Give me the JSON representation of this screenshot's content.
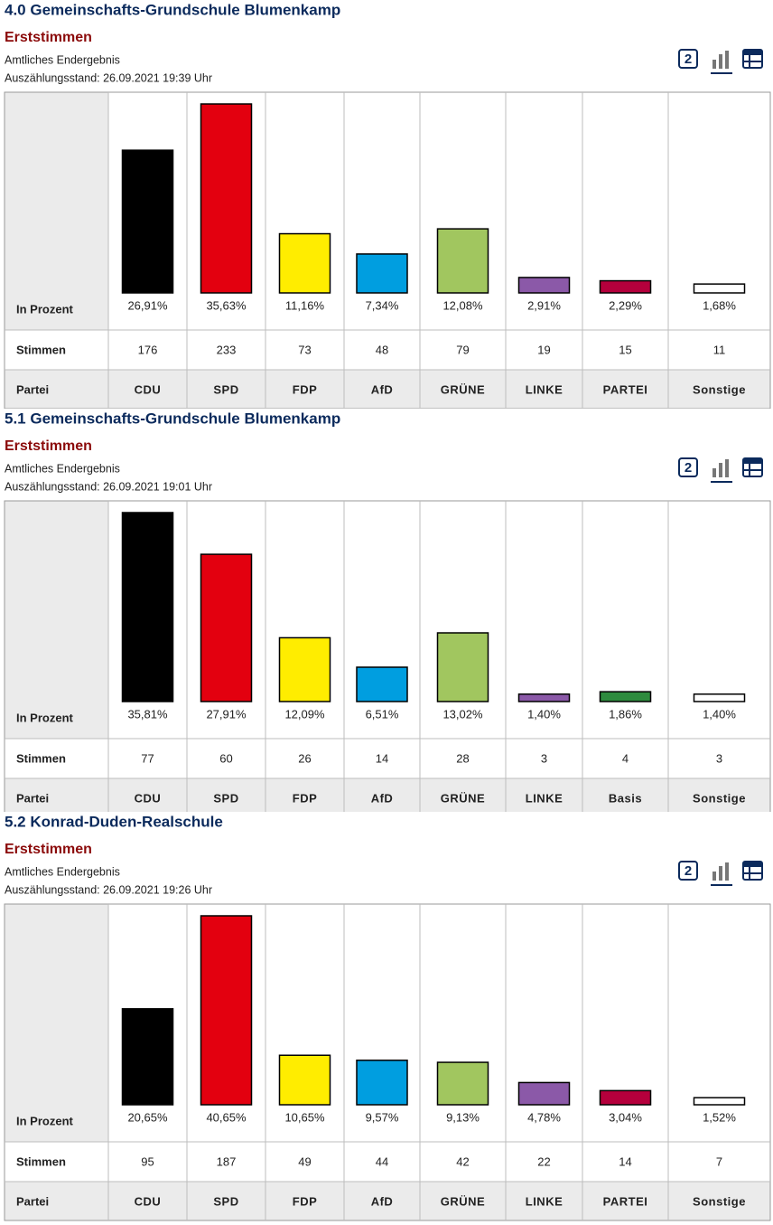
{
  "chart_data": [
    {
      "type": "bar",
      "title": "4.0 Gemeinschafts-Grundschule Blumenkamp",
      "subtitle": "Erststimmen",
      "status": "Amtliches Endergebnis",
      "timestamp": "Auszählungsstand: 26.09.2021 19:39 Uhr",
      "icon_label": "2",
      "y_label": "In Prozent",
      "votes_label": "Stimmen",
      "categories_label": "Partei",
      "categories": [
        "CDU",
        "SPD",
        "FDP",
        "AfD",
        "GRÜNE",
        "LINKE",
        "PARTEI",
        "Sonstige"
      ],
      "values": [
        26.91,
        35.63,
        11.16,
        7.34,
        12.08,
        2.91,
        2.29,
        1.68
      ],
      "value_labels": [
        "26,91%",
        "35,63%",
        "11,16%",
        "7,34%",
        "12,08%",
        "2,91%",
        "2,29%",
        "1,68%"
      ],
      "votes": [
        176,
        233,
        73,
        48,
        79,
        19,
        15,
        11
      ],
      "colors": [
        "#000000",
        "#e3000f",
        "#ffed00",
        "#009ee0",
        "#a1c65f",
        "#8b59a8",
        "#b5003c",
        "#ffffff"
      ]
    },
    {
      "type": "bar",
      "title": "5.1 Gemeinschafts-Grundschule Blumenkamp",
      "subtitle": "Erststimmen",
      "status": "Amtliches Endergebnis",
      "timestamp": "Auszählungsstand: 26.09.2021 19:01 Uhr",
      "icon_label": "2",
      "y_label": "In Prozent",
      "votes_label": "Stimmen",
      "categories_label": "Partei",
      "categories": [
        "CDU",
        "SPD",
        "FDP",
        "AfD",
        "GRÜNE",
        "LINKE",
        "Basis",
        "Sonstige"
      ],
      "values": [
        35.81,
        27.91,
        12.09,
        6.51,
        13.02,
        1.4,
        1.86,
        1.4
      ],
      "value_labels": [
        "35,81%",
        "27,91%",
        "12,09%",
        "6,51%",
        "13,02%",
        "1,40%",
        "1,86%",
        "1,40%"
      ],
      "votes": [
        77,
        60,
        26,
        14,
        28,
        3,
        4,
        3
      ],
      "colors": [
        "#000000",
        "#e3000f",
        "#ffed00",
        "#009ee0",
        "#a1c65f",
        "#8b59a8",
        "#2e8b3e",
        "#ffffff"
      ]
    },
    {
      "type": "bar",
      "title": "5.2 Konrad-Duden-Realschule",
      "subtitle": "Erststimmen",
      "status": "Amtliches Endergebnis",
      "timestamp": "Auszählungsstand: 26.09.2021 19:26 Uhr",
      "icon_label": "2",
      "y_label": "In Prozent",
      "votes_label": "Stimmen",
      "categories_label": "Partei",
      "categories": [
        "CDU",
        "SPD",
        "FDP",
        "AfD",
        "GRÜNE",
        "LINKE",
        "PARTEI",
        "Sonstige"
      ],
      "values": [
        20.65,
        40.65,
        10.65,
        9.57,
        9.13,
        4.78,
        3.04,
        1.52
      ],
      "value_labels": [
        "20,65%",
        "40,65%",
        "10,65%",
        "9,57%",
        "9,13%",
        "4,78%",
        "3,04%",
        "1,52%"
      ],
      "votes": [
        95,
        187,
        49,
        44,
        42,
        22,
        14,
        7
      ],
      "colors": [
        "#000000",
        "#e3000f",
        "#ffed00",
        "#009ee0",
        "#a1c65f",
        "#8b59a8",
        "#b5003c",
        "#ffffff"
      ]
    }
  ]
}
